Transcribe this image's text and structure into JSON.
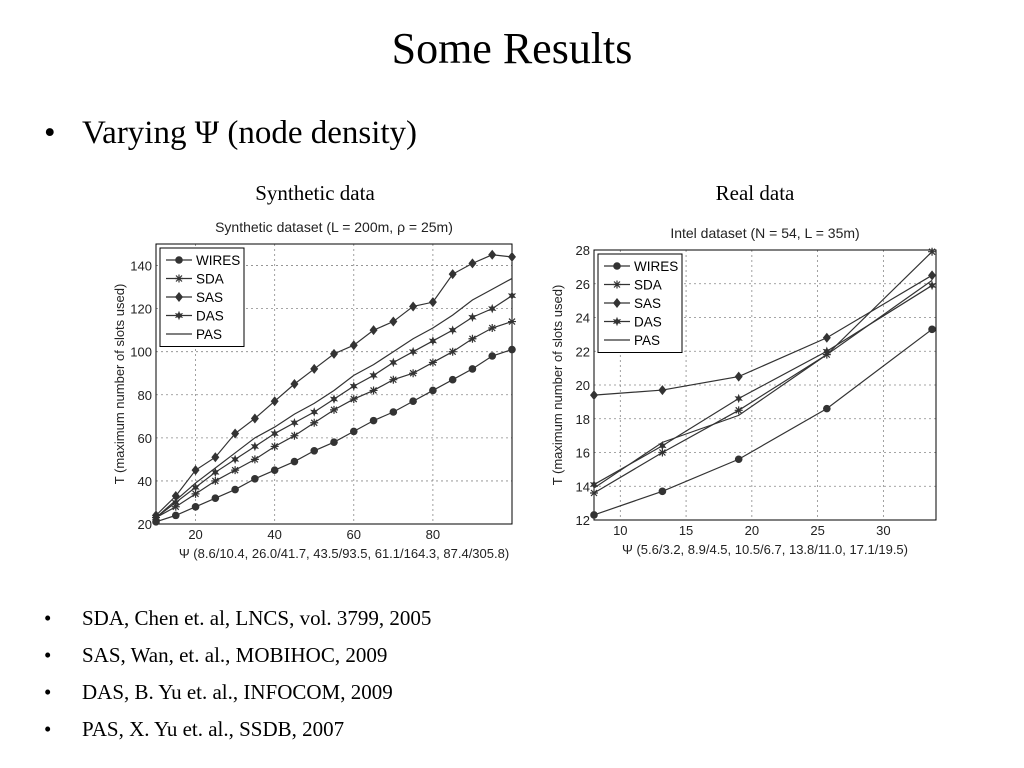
{
  "slide": {
    "title": "Some Results",
    "bullet_symbol": "•",
    "bullet": "Varying Ψ (node density)",
    "caption_left": "Synthetic data",
    "caption_right": "Real data",
    "references": [
      "SDA, Chen et. al, LNCS, vol. 3799, 2005",
      "SAS, Wan, et. al., MOBIHOC, 2009",
      "DAS, B. Yu et. al., INFOCOM, 2009",
      "PAS, X. Yu et. al., SSDB, 2007"
    ]
  },
  "colors": {
    "line": "#333333",
    "grid": "#888888",
    "axis_text": "#222222"
  },
  "chart_data": [
    {
      "type": "line",
      "title": "Synthetic dataset (L = 200m, ρ = 25m)",
      "xlabel": "Ψ (8.6/10.4, 26.0/41.7, 43.5/93.5, 61.1/164.3, 87.4/305.8)",
      "ylabel": "T (maximum number of slots used)",
      "xlim": [
        10,
        100
      ],
      "ylim": [
        20,
        150
      ],
      "xticks": [
        20,
        40,
        60,
        80
      ],
      "yticks": [
        20,
        40,
        60,
        80,
        100,
        120,
        140
      ],
      "grid": true,
      "legend_position": "top-left",
      "series": [
        {
          "name": "WIRES",
          "marker": "circle",
          "x": [
            10,
            15,
            20,
            25,
            30,
            35,
            40,
            45,
            50,
            55,
            60,
            65,
            70,
            75,
            80,
            85,
            90,
            95,
            100
          ],
          "y": [
            21,
            24,
            28,
            32,
            36,
            41,
            45,
            49,
            54,
            58,
            63,
            68,
            72,
            77,
            82,
            87,
            92,
            98,
            101
          ]
        },
        {
          "name": "SDA",
          "marker": "star",
          "x": [
            10,
            15,
            20,
            25,
            30,
            35,
            40,
            45,
            50,
            55,
            60,
            65,
            70,
            75,
            80,
            85,
            90,
            95,
            100
          ],
          "y": [
            23,
            28,
            34,
            40,
            45,
            50,
            56,
            61,
            67,
            73,
            78,
            82,
            87,
            90,
            95,
            100,
            106,
            111,
            114
          ]
        },
        {
          "name": "SAS",
          "marker": "diamond",
          "x": [
            10,
            15,
            20,
            25,
            30,
            35,
            40,
            45,
            50,
            55,
            60,
            65,
            70,
            75,
            80,
            85,
            90,
            95,
            100
          ],
          "y": [
            24,
            33,
            45,
            51,
            62,
            69,
            77,
            85,
            92,
            99,
            103,
            110,
            114,
            121,
            123,
            136,
            141,
            145,
            144
          ]
        },
        {
          "name": "DAS",
          "marker": "hexstar",
          "x": [
            10,
            15,
            20,
            25,
            30,
            35,
            40,
            45,
            50,
            55,
            60,
            65,
            70,
            75,
            80,
            85,
            90,
            95,
            100
          ],
          "y": [
            23,
            30,
            37,
            44,
            50,
            56,
            62,
            67,
            72,
            78,
            84,
            89,
            95,
            100,
            105,
            110,
            116,
            120,
            126
          ]
        },
        {
          "name": "PAS",
          "marker": "none",
          "x": [
            10,
            15,
            20,
            25,
            30,
            35,
            40,
            45,
            50,
            55,
            60,
            65,
            70,
            75,
            80,
            85,
            90,
            95,
            100
          ],
          "y": [
            23,
            31,
            39,
            46,
            53,
            60,
            65,
            71,
            76,
            82,
            89,
            94,
            100,
            106,
            111,
            117,
            124,
            129,
            134
          ]
        }
      ]
    },
    {
      "type": "line",
      "title": "Intel dataset (N = 54, L = 35m)",
      "xlabel": "Ψ (5.6/3.2, 8.9/4.5, 10.5/6.7, 13.8/11.0, 17.1/19.5)",
      "ylabel": "T (maximum number of slots used)",
      "xlim": [
        8,
        34
      ],
      "ylim": [
        12,
        28
      ],
      "xticks": [
        10,
        15,
        20,
        25,
        30
      ],
      "yticks": [
        12,
        14,
        16,
        18,
        20,
        22,
        24,
        26,
        28
      ],
      "grid": true,
      "legend_position": "top-left",
      "series": [
        {
          "name": "WIRES",
          "marker": "circle",
          "x": [
            8,
            13.2,
            19,
            25.7,
            33.7
          ],
          "y": [
            12.3,
            13.7,
            15.6,
            18.6,
            23.3
          ]
        },
        {
          "name": "SDA",
          "marker": "star",
          "x": [
            8,
            13.2,
            19,
            25.7,
            33.7
          ],
          "y": [
            13.6,
            16.0,
            18.5,
            21.8,
            27.9
          ]
        },
        {
          "name": "SAS",
          "marker": "diamond",
          "x": [
            8,
            13.2,
            19,
            25.7,
            33.7
          ],
          "y": [
            19.4,
            19.7,
            20.5,
            22.8,
            26.5
          ]
        },
        {
          "name": "DAS",
          "marker": "hexstar",
          "x": [
            8,
            13.2,
            19,
            25.7,
            33.7
          ],
          "y": [
            14.1,
            16.4,
            19.2,
            22.0,
            25.9
          ]
        },
        {
          "name": "PAS",
          "marker": "none",
          "x": [
            8,
            13.2,
            19,
            25.7,
            33.7
          ],
          "y": [
            13.9,
            16.6,
            18.2,
            21.8,
            26.2
          ]
        }
      ]
    }
  ]
}
